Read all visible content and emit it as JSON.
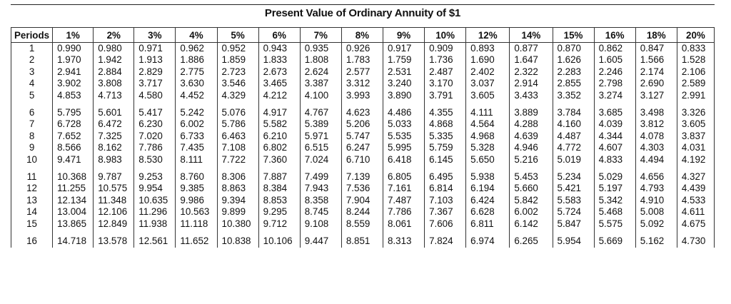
{
  "title": "Present Value of Ordinary Annuity of $1",
  "headers": [
    "Periods",
    "1%",
    "2%",
    "3%",
    "4%",
    "5%",
    "6%",
    "7%",
    "8%",
    "9%",
    "10%",
    "12%",
    "14%",
    "15%",
    "16%",
    "18%",
    "20%"
  ],
  "rows": [
    [
      "1",
      "0.990",
      "0.980",
      "0.971",
      "0.962",
      "0.952",
      "0.943",
      "0.935",
      "0.926",
      "0.917",
      "0.909",
      "0.893",
      "0.877",
      "0.870",
      "0.862",
      "0.847",
      "0.833"
    ],
    [
      "2",
      "1.970",
      "1.942",
      "1.913",
      "1.886",
      "1.859",
      "1.833",
      "1.808",
      "1.783",
      "1.759",
      "1.736",
      "1.690",
      "1.647",
      "1.626",
      "1.605",
      "1.566",
      "1.528"
    ],
    [
      "3",
      "2.941",
      "2.884",
      "2.829",
      "2.775",
      "2.723",
      "2.673",
      "2.624",
      "2.577",
      "2.531",
      "2.487",
      "2.402",
      "2.322",
      "2.283",
      "2.246",
      "2.174",
      "2.106"
    ],
    [
      "4",
      "3.902",
      "3.808",
      "3.717",
      "3.630",
      "3.546",
      "3.465",
      "3.387",
      "3.312",
      "3.240",
      "3.170",
      "3.037",
      "2.914",
      "2.855",
      "2.798",
      "2.690",
      "2.589"
    ],
    [
      "5",
      "4.853",
      "4.713",
      "4.580",
      "4.452",
      "4.329",
      "4.212",
      "4.100",
      "3.993",
      "3.890",
      "3.791",
      "3.605",
      "3.433",
      "3.352",
      "3.274",
      "3.127",
      "2.991"
    ],
    [
      "6",
      "5.795",
      "5.601",
      "5.417",
      "5.242",
      "5.076",
      "4.917",
      "4.767",
      "4.623",
      "4.486",
      "4.355",
      "4.111",
      "3.889",
      "3.784",
      "3.685",
      "3.498",
      "3.326"
    ],
    [
      "7",
      "6.728",
      "6.472",
      "6.230",
      "6.002",
      "5.786",
      "5.582",
      "5.389",
      "5.206",
      "5.033",
      "4.868",
      "4.564",
      "4.288",
      "4.160",
      "4.039",
      "3.812",
      "3.605"
    ],
    [
      "8",
      "7.652",
      "7.325",
      "7.020",
      "6.733",
      "6.463",
      "6.210",
      "5.971",
      "5.747",
      "5.535",
      "5.335",
      "4.968",
      "4.639",
      "4.487",
      "4.344",
      "4.078",
      "3.837"
    ],
    [
      "9",
      "8.566",
      "8.162",
      "7.786",
      "7.435",
      "7.108",
      "6.802",
      "6.515",
      "6.247",
      "5.995",
      "5.759",
      "5.328",
      "4.946",
      "4.772",
      "4.607",
      "4.303",
      "4.031"
    ],
    [
      "10",
      "9.471",
      "8.983",
      "8.530",
      "8.111",
      "7.722",
      "7.360",
      "7.024",
      "6.710",
      "6.418",
      "6.145",
      "5.650",
      "5.216",
      "5.019",
      "4.833",
      "4.494",
      "4.192"
    ],
    [
      "11",
      "10.368",
      "9.787",
      "9.253",
      "8.760",
      "8.306",
      "7.887",
      "7.499",
      "7.139",
      "6.805",
      "6.495",
      "5.938",
      "5.453",
      "5.234",
      "5.029",
      "4.656",
      "4.327"
    ],
    [
      "12",
      "11.255",
      "10.575",
      "9.954",
      "9.385",
      "8.863",
      "8.384",
      "7.943",
      "7.536",
      "7.161",
      "6.814",
      "6.194",
      "5.660",
      "5.421",
      "5.197",
      "4.793",
      "4.439"
    ],
    [
      "13",
      "12.134",
      "11.348",
      "10.635",
      "9.986",
      "9.394",
      "8.853",
      "8.358",
      "7.904",
      "7.487",
      "7.103",
      "6.424",
      "5.842",
      "5.583",
      "5.342",
      "4.910",
      "4.533"
    ],
    [
      "14",
      "13.004",
      "12.106",
      "11.296",
      "10.563",
      "9.899",
      "9.295",
      "8.745",
      "8.244",
      "7.786",
      "7.367",
      "6.628",
      "6.002",
      "5.724",
      "5.468",
      "5.008",
      "4.611"
    ],
    [
      "15",
      "13.865",
      "12.849",
      "11.938",
      "11.118",
      "10.380",
      "9.712",
      "9.108",
      "8.559",
      "8.061",
      "7.606",
      "6.811",
      "6.142",
      "5.847",
      "5.575",
      "5.092",
      "4.675"
    ],
    [
      "16",
      "14.718",
      "13.578",
      "12.561",
      "11.652",
      "10.838",
      "10.106",
      "9.447",
      "8.851",
      "8.313",
      "7.824",
      "6.974",
      "6.265",
      "5.954",
      "5.669",
      "5.162",
      "4.730"
    ]
  ]
}
